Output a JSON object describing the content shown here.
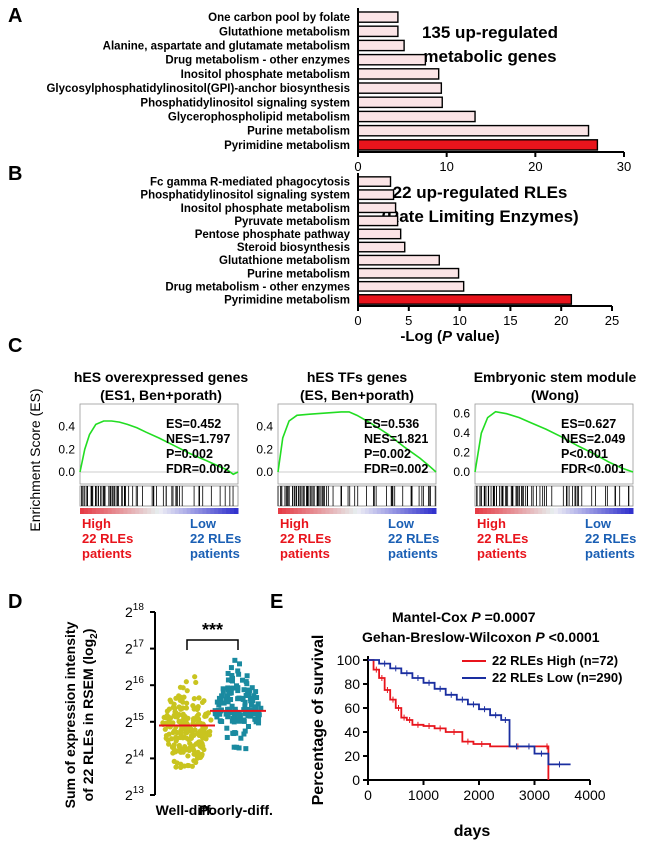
{
  "chart_data": [
    {
      "id": "A",
      "type": "bar",
      "orientation": "horizontal",
      "panel_label": "A",
      "title": "135 up-regulated metabolic genes",
      "title_lines": [
        "135 up-regulated",
        "metabolic genes"
      ],
      "categories": [
        "One carbon pool by folate",
        "Glutathione metabolism",
        "Alanine, aspartate and glutamate metabolism",
        "Drug metabolism - other enzymes",
        "Inositol phosphate metabolism",
        "Glycosylphosphatidylinositol(GPI)-anchor biosynthesis",
        "Phosphatidylinositol signaling system",
        "Glycerophospholipid metabolism",
        "Purine metabolism",
        "Pyrimidine metabolism"
      ],
      "values": [
        4.5,
        4.5,
        5.2,
        7.6,
        9.1,
        9.4,
        9.5,
        13.2,
        26.0,
        27.0
      ],
      "highlight_index": 9,
      "xlim": [
        0,
        30
      ],
      "xticks": [
        0,
        10,
        20,
        30
      ],
      "xlabel": ""
    },
    {
      "id": "B",
      "type": "bar",
      "orientation": "horizontal",
      "panel_label": "B",
      "title": "22 up-regulated RLEs (Rate Limiting Enzymes)",
      "title_lines": [
        "22 up-regulated RLEs",
        "(Rate Limiting Enzymes)"
      ],
      "categories": [
        "Fc gamma R-mediated phagocytosis",
        "Phosphatidylinositol signaling system",
        "Inositol phosphate metabolism",
        "Pyruvate metabolism",
        "Pentose phosphate pathway",
        "Steroid biosynthesis",
        "Glutathione metabolism",
        "Purine metabolism",
        "Drug metabolism - other enzymes",
        "Pyrimidine metabolism"
      ],
      "values": [
        3.2,
        3.5,
        3.7,
        3.9,
        4.2,
        4.6,
        8.0,
        9.9,
        10.4,
        21.0
      ],
      "highlight_index": 9,
      "xlim": [
        0,
        25
      ],
      "xticks": [
        0,
        5,
        10,
        15,
        20,
        25
      ],
      "xlabel_prefix": "-Log (",
      "xlabel_italic": "P",
      "xlabel_suffix": " value)"
    },
    {
      "id": "C",
      "type": "line",
      "panel_label": "C",
      "ylabel": "Enrichment Score (ES)",
      "high_lines": [
        "High",
        "22 RLEs",
        "patients"
      ],
      "low_lines": [
        "Low",
        "22 RLEs",
        "patients"
      ],
      "subplots": [
        {
          "title_lines": [
            "hES overexpressed genes",
            "(ES1, Ben+porath)"
          ],
          "yticks": [
            "0.4",
            "0.2",
            "0.0"
          ],
          "stats": [
            "ES=0.452",
            "NES=1.797",
            "P=0.002",
            "FDR=0.002"
          ],
          "x": [
            0,
            0.03,
            0.06,
            0.1,
            0.15,
            0.2,
            0.25,
            0.3,
            0.36,
            0.42,
            0.5,
            0.6,
            0.7,
            0.8,
            0.88,
            0.93,
            0.97,
            1.0
          ],
          "es": [
            0,
            0.2,
            0.33,
            0.42,
            0.45,
            0.45,
            0.44,
            0.42,
            0.39,
            0.35,
            0.3,
            0.23,
            0.16,
            0.1,
            0.05,
            0.02,
            -0.02,
            0.0
          ]
        },
        {
          "title_lines": [
            "hES TFs genes",
            "(ES, Ben+porath)"
          ],
          "yticks": [
            "0.4",
            "0.2",
            "0.0"
          ],
          "stats": [
            "ES=0.536",
            "NES=1.821",
            "P=0.002",
            "FDR=0.002"
          ],
          "x": [
            0,
            0.03,
            0.07,
            0.12,
            0.2,
            0.3,
            0.4,
            0.45,
            0.5,
            0.55,
            0.6,
            0.7,
            0.8,
            0.9,
            0.96,
            1.0
          ],
          "es": [
            0,
            0.3,
            0.45,
            0.5,
            0.51,
            0.52,
            0.53,
            0.53,
            0.5,
            0.46,
            0.42,
            0.33,
            0.22,
            0.12,
            0.05,
            0.0
          ]
        },
        {
          "title_lines": [
            "Embryonic stem module",
            "(Wong)"
          ],
          "yticks": [
            "0.6",
            "0.4",
            "0.2",
            "0.0"
          ],
          "stats": [
            "ES=0.627",
            "NES=2.049",
            "P<0.001",
            "FDR<0.001"
          ],
          "x": [
            0,
            0.04,
            0.08,
            0.13,
            0.2,
            0.28,
            0.35,
            0.45,
            0.55,
            0.65,
            0.75,
            0.85,
            0.93,
            1.0
          ],
          "es": [
            0,
            0.4,
            0.56,
            0.62,
            0.6,
            0.56,
            0.51,
            0.44,
            0.36,
            0.27,
            0.19,
            0.1,
            0.04,
            0.0
          ]
        }
      ]
    },
    {
      "id": "D",
      "type": "scatter",
      "panel_label": "D",
      "ylabel_line1": "Sum of expression intensity",
      "ylabel_line2_prefix": "of 22 RLEs in RSEM (log",
      "ylabel_line2_sub": "2",
      "ylabel_line2_suffix": ")",
      "ytick_base": "2",
      "ytick_exponents": [
        "13",
        "14",
        "15",
        "16",
        "17",
        "18"
      ],
      "ylim": [
        13,
        18
      ],
      "categories": [
        "Well-diff.",
        "Poorly-diff."
      ],
      "series": [
        {
          "name": "Well-diff.",
          "color": "#c9c41f",
          "median": 14.9,
          "spread_low": 13.2,
          "spread_high": 16.4,
          "n": 220
        },
        {
          "name": "Poorly-diff.",
          "color": "#1a8aa0",
          "median": 15.3,
          "spread_low": 14.0,
          "spread_high": 16.8,
          "n": 140
        }
      ],
      "median_color": "#e8141c",
      "significance": "***"
    },
    {
      "id": "E",
      "type": "line",
      "panel_label": "E",
      "stat1_prefix": "Mantel-Cox ",
      "stat1_italic": "P",
      "stat1_suffix": " =0.0007",
      "stat2_prefix": "Gehan-Breslow-Wilcoxon ",
      "stat2_italic": "P",
      "stat2_suffix": " <0.0001",
      "ylabel": "Percentage of survival",
      "xlabel": "days",
      "xlim": [
        0,
        4000
      ],
      "ylim": [
        0,
        100
      ],
      "xticks": [
        0,
        1000,
        2000,
        3000,
        4000
      ],
      "yticks": [
        0,
        20,
        40,
        60,
        80,
        100
      ],
      "series": [
        {
          "name": "22 RLEs High (n=72)",
          "color": "#e8141c",
          "x": [
            0,
            100,
            200,
            300,
            400,
            500,
            600,
            700,
            800,
            1000,
            1200,
            1400,
            1700,
            1900,
            2200,
            3200,
            3250
          ],
          "y": [
            100,
            92,
            85,
            75,
            67,
            60,
            52,
            50,
            46,
            45,
            43,
            40,
            32,
            30,
            28,
            28,
            0
          ]
        },
        {
          "name": "22 RLEs Low (n=290)",
          "color": "#1a2ea0",
          "x": [
            0,
            200,
            400,
            600,
            800,
            1000,
            1200,
            1400,
            1600,
            1800,
            2000,
            2200,
            2400,
            2550,
            2800,
            3000,
            3250,
            3650
          ],
          "y": [
            100,
            97,
            93,
            89,
            85,
            81,
            76,
            71,
            67,
            63,
            59,
            54,
            50,
            28,
            28,
            22,
            13,
            13
          ]
        }
      ]
    }
  ]
}
